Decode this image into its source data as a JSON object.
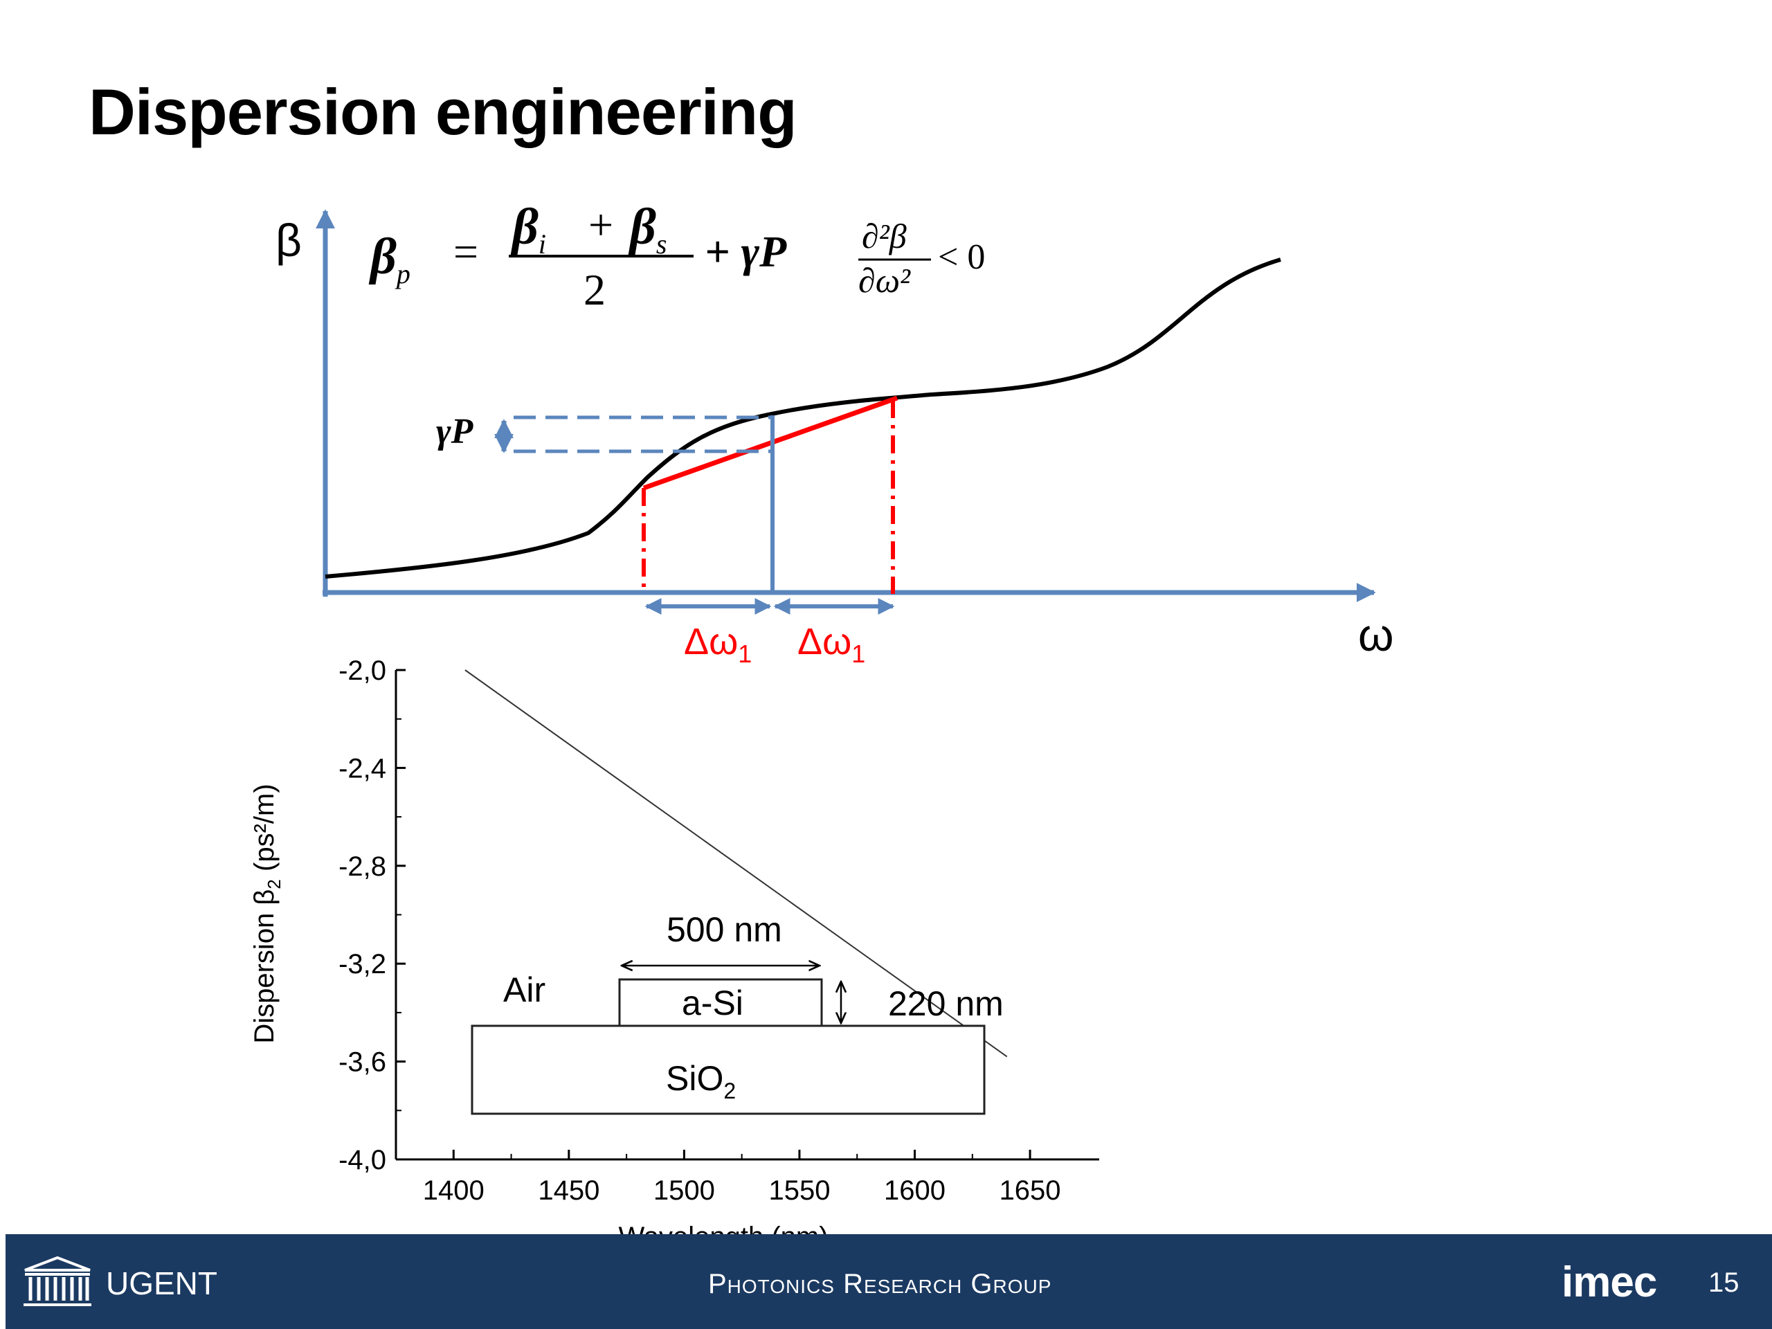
{
  "slide": {
    "title": "Dispersion engineering",
    "page_number": "15"
  },
  "schematic": {
    "y_axis_label": "β",
    "x_axis_label": "ω",
    "equation_lhs": "β",
    "equation_lhs_sub": "p",
    "equation_num_1": "β",
    "equation_num_1_sub": "i",
    "equation_plus": "+",
    "equation_num_2": "β",
    "equation_num_2_sub": "s",
    "equation_den": "2",
    "equation_gamma": "+ γP",
    "cond_num": "∂²β",
    "cond_den": "∂ω²",
    "cond_rel": "< 0",
    "gamma_p_label": "γP",
    "delta_label_1": "Δω",
    "delta_label_2": "Δω",
    "delta_sub": "1",
    "colors": {
      "axis": "#5b86bd",
      "curve": "#000000",
      "chord": "#ff0000"
    }
  },
  "chart_data": {
    "type": "line",
    "xlabel": "Wavelength (nm)",
    "ylabel": "Dispersion β",
    "ylabel_sub": "2",
    "ylabel_unit": " (ps²/m)",
    "xlim": [
      1375,
      1680
    ],
    "ylim": [
      -4.0,
      -2.0
    ],
    "x_ticks": [
      "1400",
      "1450",
      "1500",
      "1550",
      "1600",
      "1650"
    ],
    "x_tick_values": [
      1400,
      1450,
      1500,
      1550,
      1600,
      1650
    ],
    "y_ticks": [
      "-2,0",
      "-2,4",
      "-2,8",
      "-3,2",
      "-3,6",
      "-4,0"
    ],
    "y_tick_values": [
      -2.0,
      -2.4,
      -2.8,
      -3.2,
      -3.6,
      -4.0
    ],
    "series": [
      {
        "x": [
          1405,
          1640
        ],
        "y": [
          -2.0,
          -3.58
        ]
      }
    ]
  },
  "inset": {
    "air_label": "Air",
    "core_label": "a-Si",
    "substrate_label": "SiO",
    "substrate_sub": "2",
    "width_label": "500 nm",
    "height_label": "220 nm"
  },
  "footer": {
    "university": "UGENT",
    "group": "Photonics Research Group",
    "brand": "imec",
    "colors": {
      "background": "#1b3a62",
      "text": "#ffffff"
    }
  }
}
